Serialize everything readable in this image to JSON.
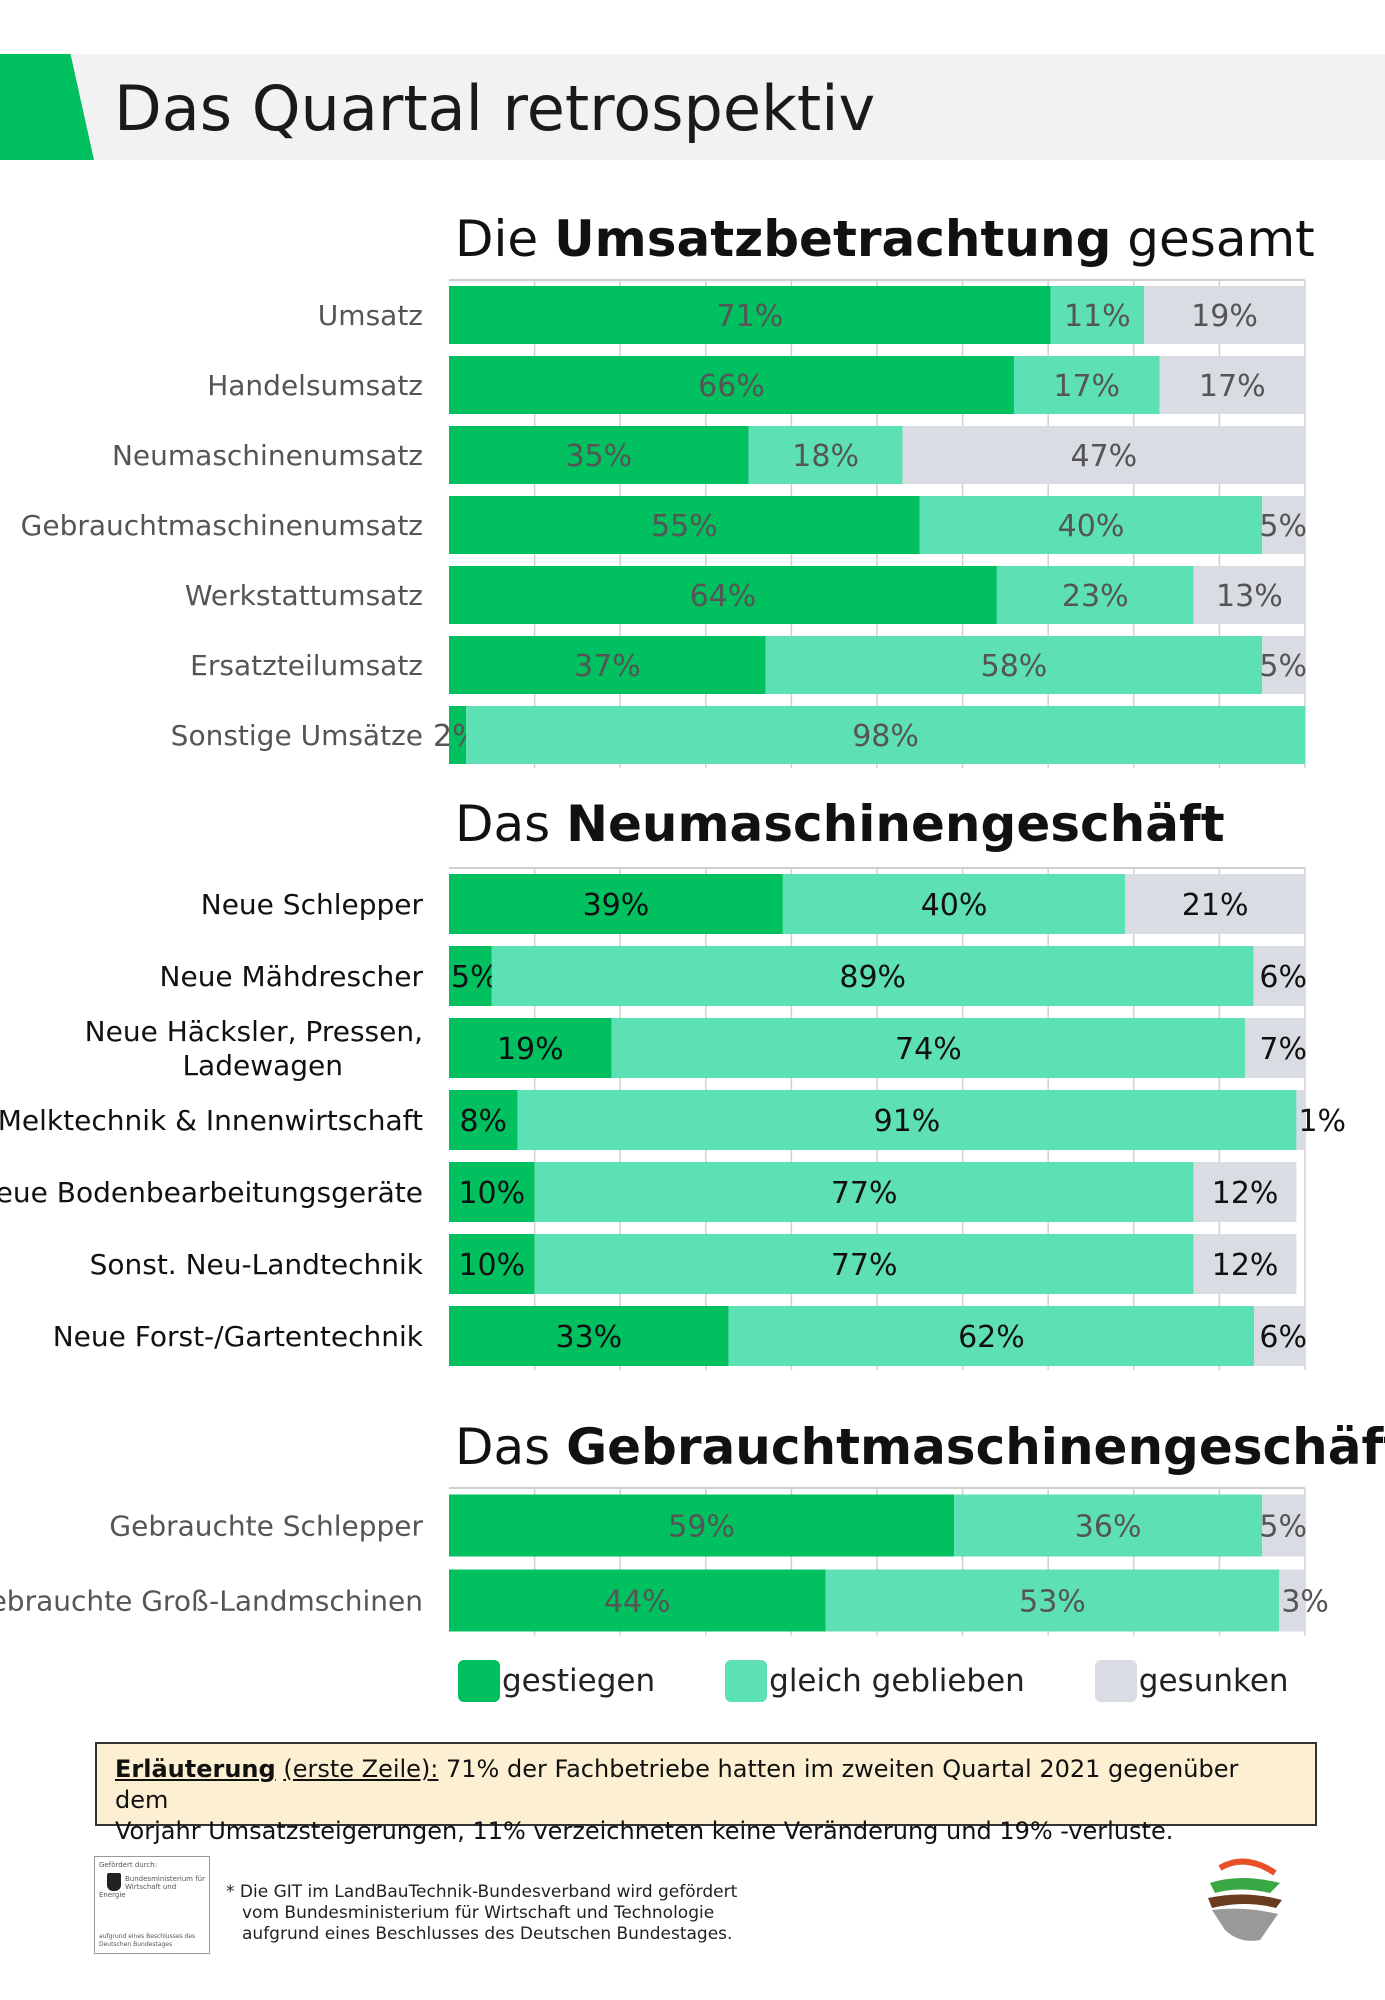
{
  "header": {
    "title": "Das Quartal retrospektiv"
  },
  "colors": {
    "accent": "#00c060",
    "gestiegen": "#00c060",
    "gleich": "#5ee0b5",
    "gesunken": "#d9dde3"
  },
  "sections": [
    {
      "title_pre": "Die ",
      "title_bold": "Umsatzbetrachtung",
      "title_post": " gesamt"
    },
    {
      "title_pre": "Das ",
      "title_bold": "Neumaschinengeschäft",
      "title_post": ""
    },
    {
      "title_pre": "Das ",
      "title_bold": "Gebrauchtmaschinengeschäft",
      "title_post": ""
    }
  ],
  "chart_data": [
    {
      "type": "bar",
      "orientation": "horizontal-stacked-100",
      "title": "Die Umsatzbetrachtung gesamt",
      "categories": [
        "Umsatz",
        "Handelsumsatz",
        "Neumaschinenumsatz",
        "Gebrauchtmaschinenumsatz",
        "Werkstattumsatz",
        "Ersatzteilumsatz",
        "Sonstige Umsätze"
      ],
      "series": [
        {
          "name": "gestiegen",
          "values": [
            71,
            66,
            35,
            55,
            64,
            37,
            2
          ]
        },
        {
          "name": "gleich geblieben",
          "values": [
            11,
            17,
            18,
            40,
            23,
            58,
            98
          ]
        },
        {
          "name": "gesunken",
          "values": [
            19,
            17,
            47,
            5,
            13,
            5,
            0
          ]
        }
      ],
      "xlim": [
        0,
        100
      ]
    },
    {
      "type": "bar",
      "orientation": "horizontal-stacked-100",
      "title": "Das Neumaschinengeschäft",
      "categories": [
        "Neue Schlepper",
        "Neue Mähdrescher",
        "Neue Häcksler, Pressen,\nLadewagen",
        "Melktechnik & Innenwirtschaft",
        "Neue Bodenbearbeitungsgeräte",
        "Sonst. Neu-Landtechnik",
        "Neue Forst-/Gartentechnik"
      ],
      "series": [
        {
          "name": "gestiegen",
          "values": [
            39,
            5,
            19,
            8,
            10,
            10,
            33
          ]
        },
        {
          "name": "gleich geblieben",
          "values": [
            40,
            89,
            74,
            91,
            77,
            77,
            62
          ]
        },
        {
          "name": "gesunken",
          "values": [
            21,
            6,
            7,
            1,
            12,
            12,
            6
          ]
        }
      ],
      "xlim": [
        0,
        100
      ]
    },
    {
      "type": "bar",
      "orientation": "horizontal-stacked-100",
      "title": "Das Gebrauchtmaschinengeschäft",
      "categories": [
        "Gebrauchte Schlepper",
        "Gebrauchte Groß-Landmschinen"
      ],
      "series": [
        {
          "name": "gestiegen",
          "values": [
            59,
            44
          ]
        },
        {
          "name": "gleich geblieben",
          "values": [
            36,
            53
          ]
        },
        {
          "name": "gesunken",
          "values": [
            5,
            3
          ]
        }
      ],
      "xlim": [
        0,
        100
      ]
    }
  ],
  "legend": [
    {
      "label": "gestiegen",
      "color": "#00c060"
    },
    {
      "label": "gleich geblieben",
      "color": "#5ee0b5"
    },
    {
      "label": "gesunken",
      "color": "#d9dde3"
    }
  ],
  "explanation": {
    "keyword": "Erläuterung",
    "subkeyword": "(erste Zeile):",
    "text1": " 71% der Fachbetriebe hatten im zweiten Quartal 2021 gegenüber dem",
    "text2": "Vorjahr Umsatzsteigerungen, 11% verzeichneten keine Veränderung und 19% -verluste."
  },
  "funding": {
    "top": "Gefördert durch:",
    "ministry": "Bundesministerium für Wirtschaft und Energie",
    "bottom": "aufgrund eines Beschlusses des Deutschen Bundestages"
  },
  "footnote": {
    "line1": "* Die GIT im LandBauTechnik-Bundesverband wird gefördert",
    "line2": "vom Bundesministerium für Wirtschaft und Technologie",
    "line3": "aufgrund eines Beschlusses des Deutschen Bundestages."
  }
}
